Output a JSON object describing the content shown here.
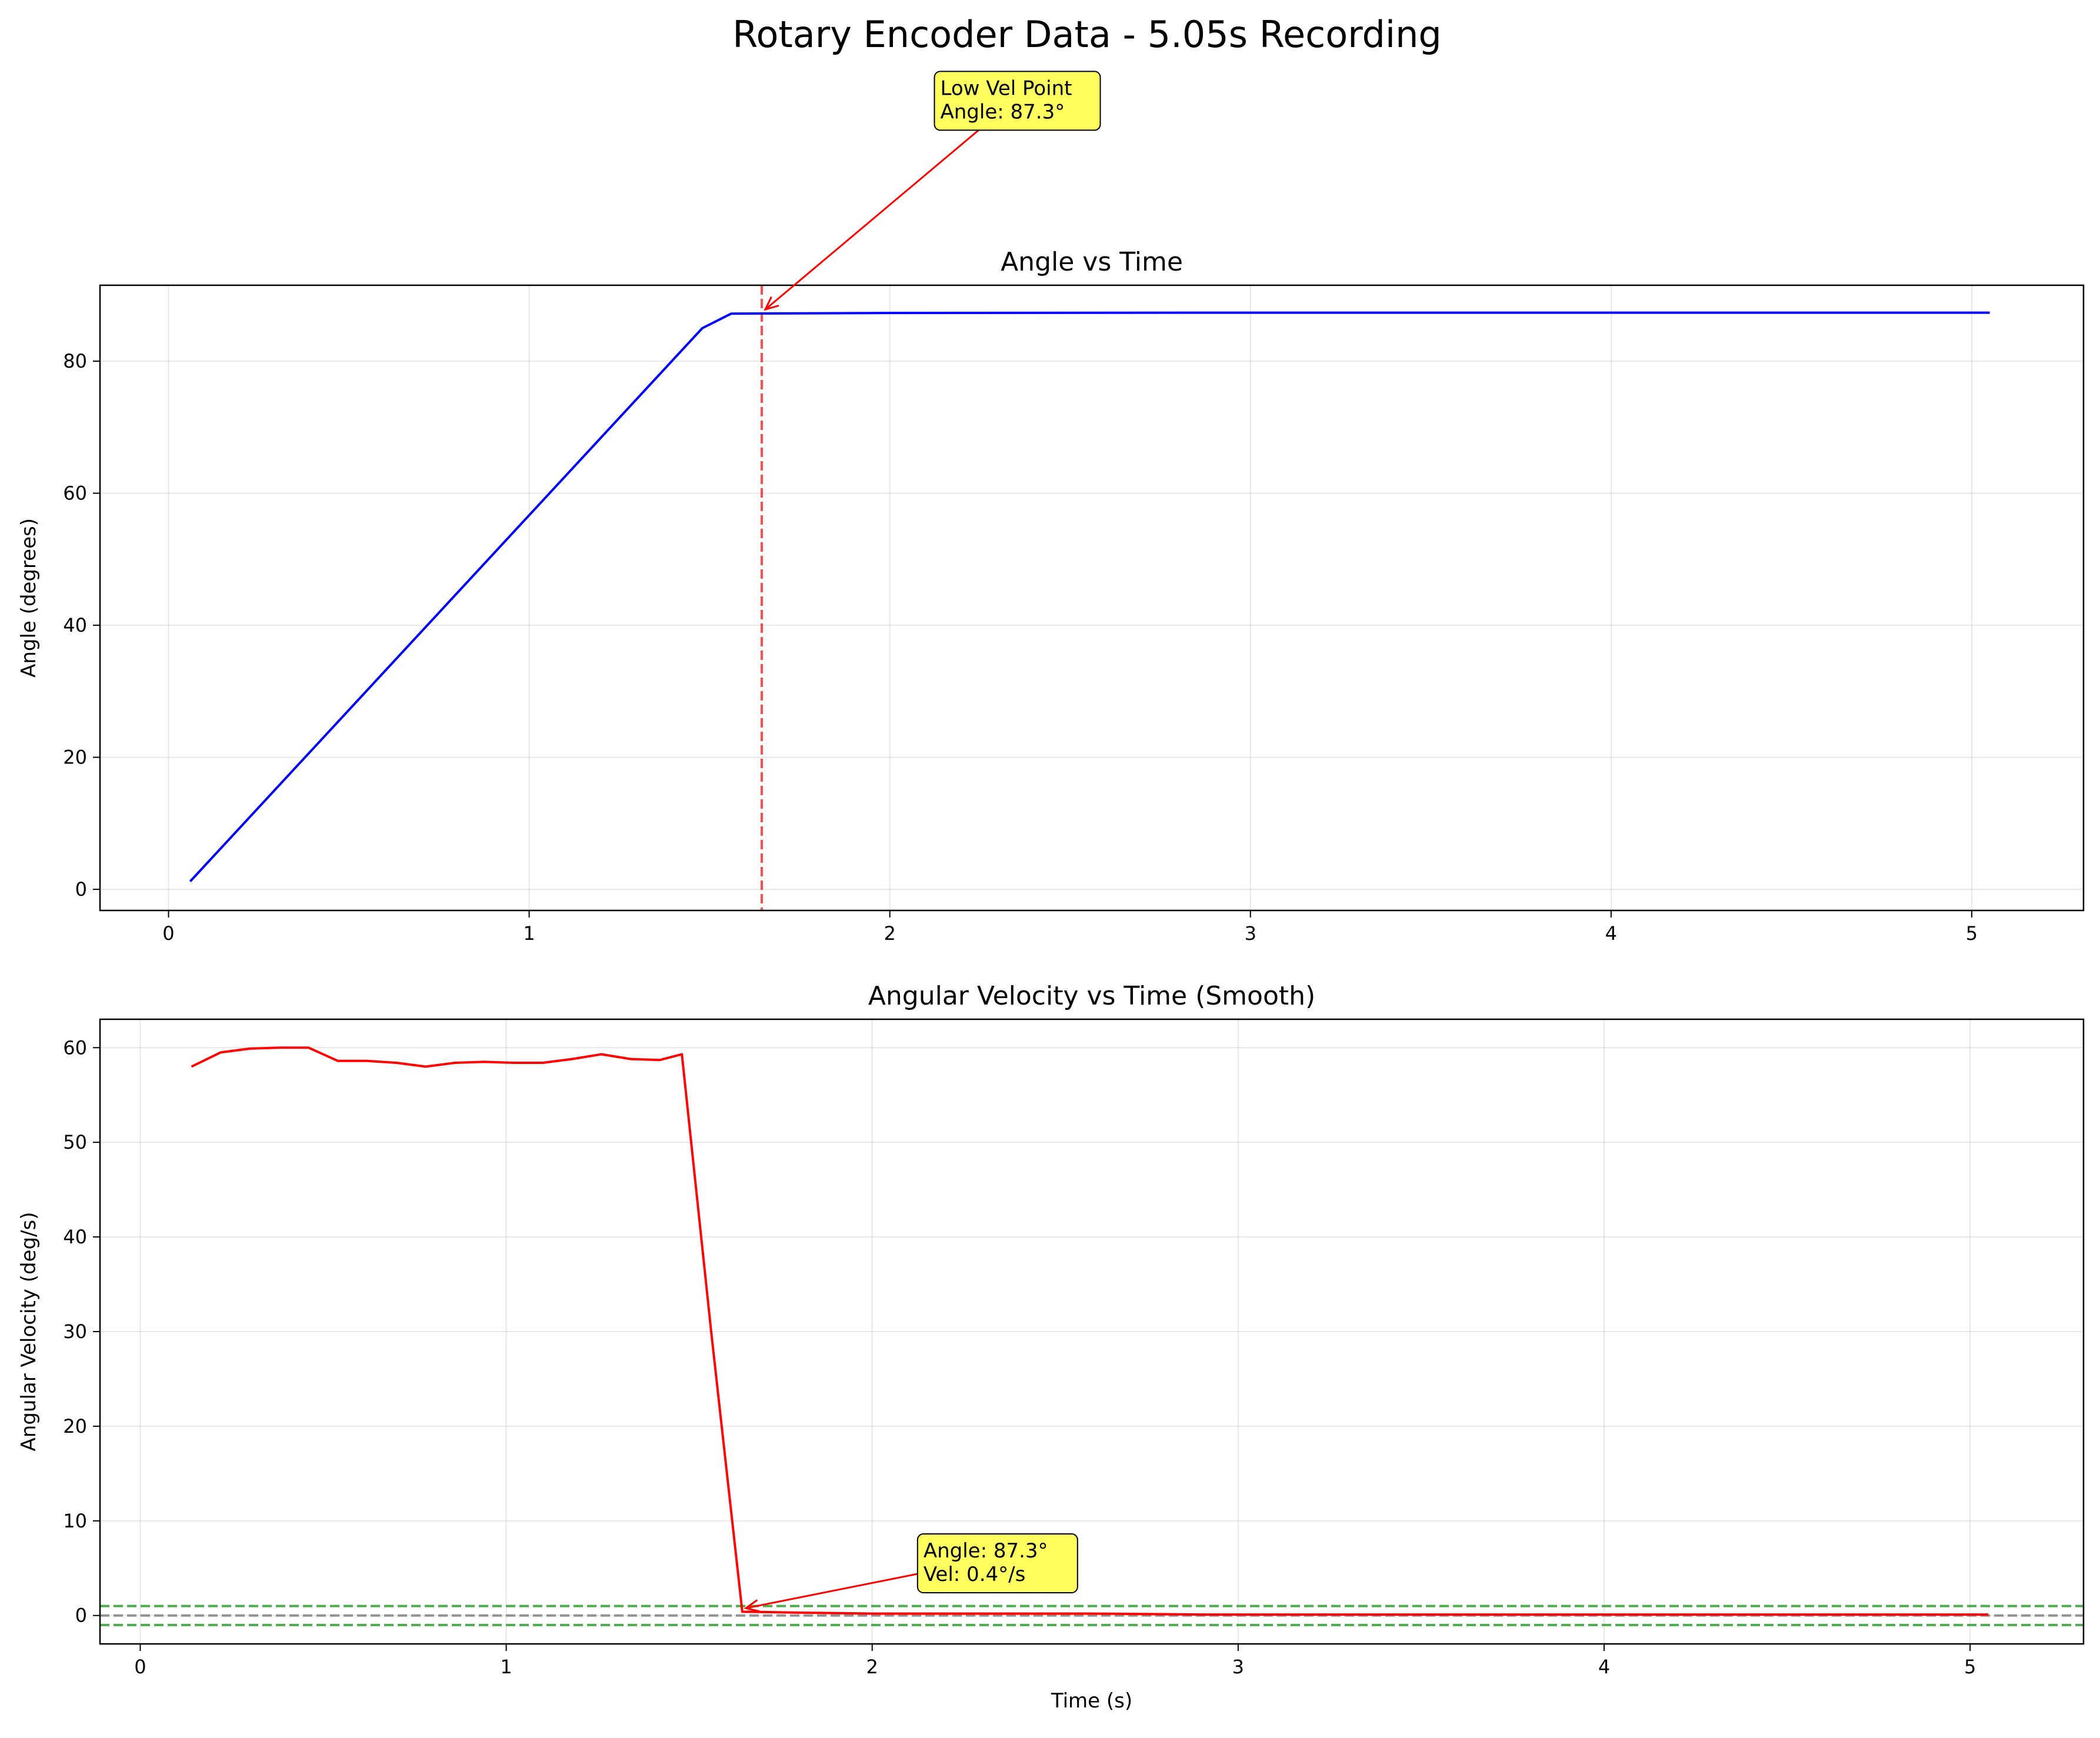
{
  "figure": {
    "suptitle": "Rotary Encoder Data - 5.05s Recording"
  },
  "chart_data": [
    {
      "type": "line",
      "title": "Angle vs Time",
      "xlabel": "",
      "ylabel": "Angle (degrees)",
      "xlim": [
        -0.19,
        5.31
      ],
      "ylim": [
        -3.2,
        91.5
      ],
      "xticks": [
        0,
        1,
        2,
        3,
        4,
        5
      ],
      "yticks": [
        0,
        20,
        40,
        60,
        80
      ],
      "grid": true,
      "series": [
        {
          "color": "#0000ff",
          "x": [
            0.06,
            1.48,
            1.56,
            2.0,
            3.0,
            4.0,
            5.05
          ],
          "y": [
            1.2,
            85.0,
            87.2,
            87.3,
            87.35,
            87.35,
            87.35
          ]
        }
      ],
      "vline": {
        "x": 1.645,
        "color": "#ff0000",
        "style": "dashed"
      },
      "annotation": {
        "lines": [
          "Low Vel Point",
          "Angle: 87.3°"
        ],
        "point": [
          1.645,
          87.3
        ],
        "text_at": [
          2.14,
          123.0
        ],
        "box_color": "#ffff44",
        "arrow_color": "#ff0000"
      }
    },
    {
      "type": "line",
      "title": "Angular Velocity vs Time (Smooth)",
      "xlabel": "Time (s)",
      "ylabel": "Angular Velocity (deg/s)",
      "xlim": [
        -0.11,
        5.31
      ],
      "ylim": [
        -3.0,
        63.0
      ],
      "xticks": [
        0,
        1,
        2,
        3,
        4,
        5
      ],
      "yticks": [
        0,
        10,
        20,
        30,
        40,
        50,
        60
      ],
      "grid": true,
      "series": [
        {
          "color": "#ff0000",
          "x": [
            0.14,
            0.22,
            0.3,
            0.38,
            0.46,
            0.54,
            0.62,
            0.7,
            0.78,
            0.86,
            0.94,
            1.02,
            1.1,
            1.18,
            1.26,
            1.34,
            1.42,
            1.48,
            1.56,
            1.645,
            1.8,
            2.0,
            2.3,
            2.6,
            2.9,
            3.2,
            3.5,
            3.8,
            4.1,
            4.4,
            4.7,
            5.05
          ],
          "y": [
            58.0,
            59.5,
            59.9,
            60.0,
            60.0,
            58.6,
            58.6,
            58.4,
            58.0,
            58.4,
            58.5,
            58.4,
            58.4,
            58.8,
            59.3,
            58.8,
            58.7,
            59.3,
            30.0,
            0.4,
            0.3,
            0.2,
            0.2,
            0.2,
            0.1,
            0.1,
            0.1,
            0.1,
            0.1,
            0.1,
            0.1,
            0.1
          ]
        }
      ],
      "hlines": [
        {
          "y": 1.0,
          "color": "#2ca02c",
          "style": "dashed"
        },
        {
          "y": 0.0,
          "color": "#808080",
          "style": "dashed"
        },
        {
          "y": -1.0,
          "color": "#2ca02c",
          "style": "dashed"
        }
      ],
      "annotation": {
        "lines": [
          "Angle: 87.3°",
          "Vel: 0.4°/s"
        ],
        "point": [
          1.645,
          0.4
        ],
        "text_at": [
          2.14,
          8.0
        ],
        "box_color": "#ffff44",
        "arrow_color": "#ff0000"
      }
    }
  ]
}
